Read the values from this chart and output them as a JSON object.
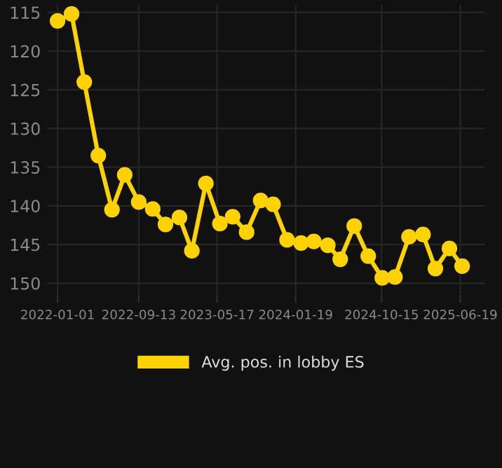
{
  "chart_data": {
    "type": "line",
    "x": [
      "2022-01-01",
      "2022-02-14",
      "2022-03-26",
      "2022-05-09",
      "2022-06-21",
      "2022-07-31",
      "2022-09-13",
      "2022-10-27",
      "2022-12-06",
      "2023-01-19",
      "2023-02-27",
      "2023-04-12",
      "2023-05-26",
      "2023-07-05",
      "2023-08-18",
      "2023-10-01",
      "2023-11-09",
      "2023-12-23",
      "2024-02-05",
      "2024-03-16",
      "2024-04-29",
      "2024-06-07",
      "2024-07-21",
      "2024-09-03",
      "2024-10-17",
      "2024-11-26",
      "2025-01-09",
      "2025-02-22",
      "2025-04-02",
      "2025-05-16",
      "2025-06-25"
    ],
    "series": [
      {
        "name": "Avg. pos. in lobby ES",
        "color": "#ffd200",
        "values": [
          116.1,
          115.2,
          124.0,
          133.5,
          140.5,
          136.0,
          139.5,
          140.4,
          142.4,
          141.5,
          145.8,
          137.1,
          142.3,
          141.4,
          143.4,
          139.3,
          139.8,
          144.4,
          144.8,
          144.6,
          145.1,
          146.9,
          142.6,
          146.5,
          149.3,
          149.2,
          144.0,
          143.7,
          148.1,
          145.5,
          147.8
        ]
      }
    ],
    "xlim": [
      "2021-12-01",
      "2025-09-03"
    ],
    "ylim": [
      151.5,
      114
    ],
    "xticks": [
      "2022-01-01",
      "2022-09-13",
      "2023-05-17",
      "2024-01-19",
      "2024-10-15",
      "2025-06-19"
    ],
    "yticks": [
      115,
      120,
      125,
      130,
      135,
      140,
      145,
      150
    ],
    "grid": true,
    "legend": "bottom",
    "marker": "circle",
    "line_style": "solid"
  }
}
